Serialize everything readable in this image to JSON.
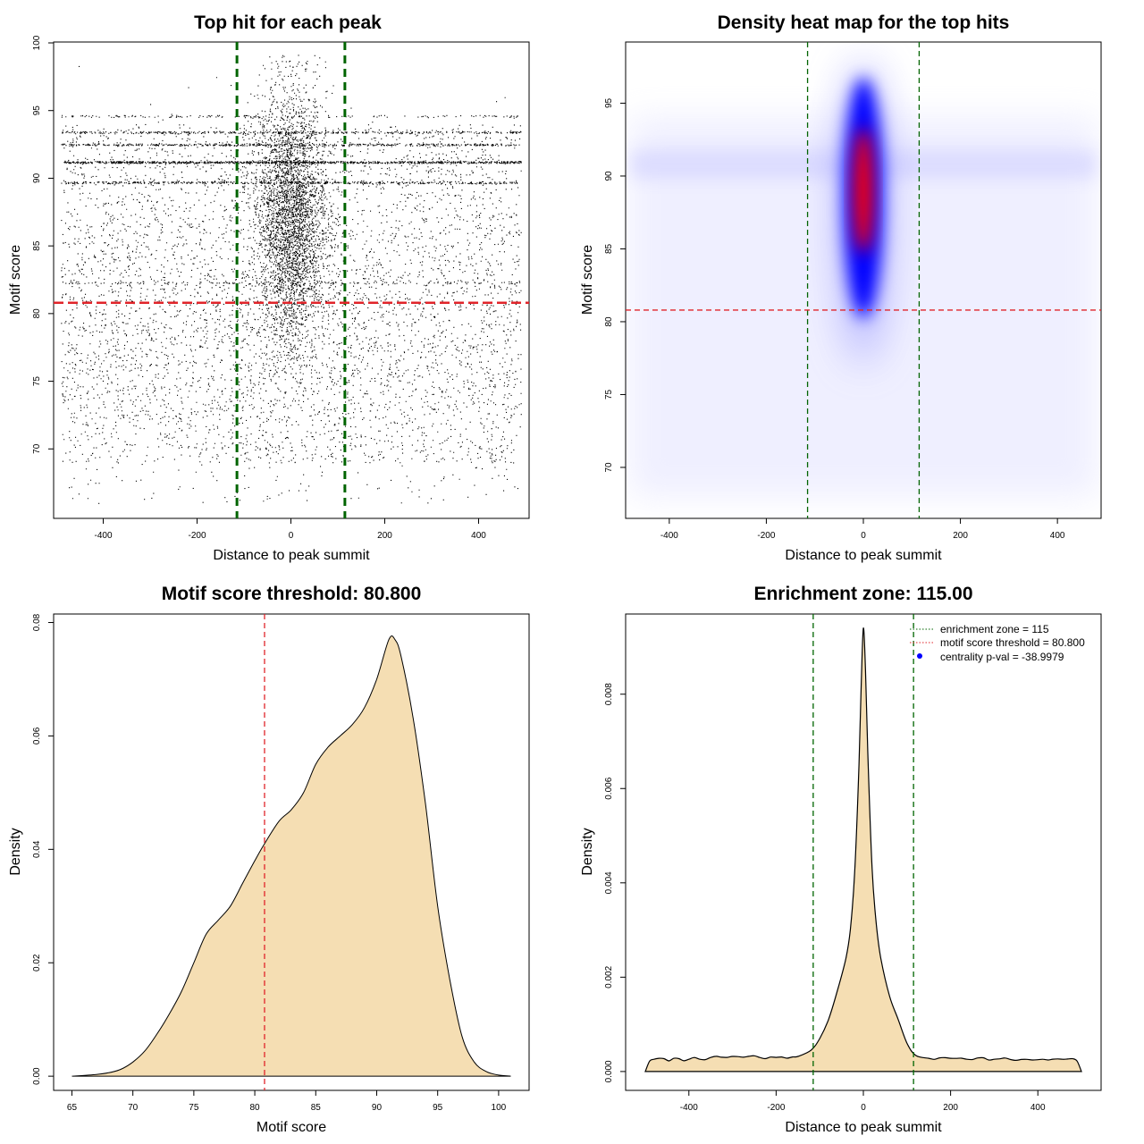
{
  "chart_data": [
    {
      "type": "scatter",
      "title": "Top hit for each peak",
      "xlabel": "Distance to peak summit",
      "ylabel": "Motif score",
      "xlim": [
        -500,
        500
      ],
      "ylim": [
        65,
        100
      ],
      "xticks": [
        -400,
        -200,
        0,
        200,
        400
      ],
      "yticks": [
        70,
        75,
        80,
        85,
        90,
        95,
        100
      ],
      "points_description": "about 40,000 points; dense vertical band centred on 0 (roughly -80 to 80) spanning scores 73-99; uniform background across -490 to 490 with horizontal streaks near 89.7, 91.2, 92.5 and 93.4",
      "vlines": [
        -115,
        115
      ],
      "hline": 80.8,
      "colors": {
        "points": "#000000",
        "vlines": "#006400",
        "hline": "#e0242a"
      }
    },
    {
      "type": "heatmap",
      "title": "Density heat map for the top hits",
      "xlabel": "Distance to peak summit",
      "ylabel": "Motif score",
      "xlim": [
        -490,
        490
      ],
      "ylim": [
        66.5,
        99.2
      ],
      "xticks": [
        -400,
        -200,
        0,
        200,
        400
      ],
      "yticks": [
        70,
        75,
        80,
        85,
        90,
        95
      ],
      "peak": {
        "x": 0,
        "y": 89
      },
      "vlines": [
        -115,
        115
      ],
      "hline": 80.8,
      "colormap": [
        "#ffffff",
        "#0000ff",
        "#ff0000"
      ]
    },
    {
      "type": "area",
      "title": "Motif score threshold: 80.800",
      "xlabel": "Motif score",
      "ylabel": "Density",
      "xlim": [
        63.5,
        102.5
      ],
      "ylim": [
        -0.0025,
        0.0815
      ],
      "xticks": [
        65,
        70,
        75,
        80,
        85,
        90,
        95,
        100
      ],
      "yticks": [
        0.0,
        0.02,
        0.04,
        0.06,
        0.08
      ],
      "ytick_labels": [
        "0.00",
        "0.02",
        "0.04",
        "0.06",
        "0.08"
      ],
      "x": [
        65,
        67,
        68,
        69,
        70,
        71,
        72,
        73,
        74,
        75,
        76,
        77,
        78,
        79,
        80,
        80.8,
        82,
        83,
        84,
        85,
        86,
        87,
        88,
        89,
        90,
        91,
        91.5,
        92,
        93,
        94,
        95,
        96,
        97,
        98,
        99,
        100,
        101
      ],
      "y": [
        0.0,
        0.0003,
        0.0006,
        0.0012,
        0.0025,
        0.0045,
        0.0075,
        0.011,
        0.015,
        0.02,
        0.025,
        0.0275,
        0.03,
        0.034,
        0.038,
        0.041,
        0.045,
        0.047,
        0.05,
        0.055,
        0.058,
        0.06,
        0.062,
        0.065,
        0.07,
        0.077,
        0.077,
        0.074,
        0.063,
        0.048,
        0.03,
        0.017,
        0.007,
        0.0025,
        0.0008,
        0.0002,
        0.0
      ],
      "vline": 80.8,
      "colors": {
        "fill": "#f5deb3",
        "line": "#000000",
        "vline": "#e0242a"
      }
    },
    {
      "type": "area",
      "title": "Enrichment zone: 115.00",
      "xlabel": "Distance to peak summit",
      "ylabel": "Density",
      "xlim": [
        -545,
        545
      ],
      "ylim": [
        -0.0004,
        0.0097
      ],
      "xticks": [
        -400,
        -200,
        0,
        200,
        400
      ],
      "yticks": [
        0.0,
        0.002,
        0.004,
        0.006,
        0.008
      ],
      "ytick_labels": [
        "0.000",
        "0.002",
        "0.004",
        "0.006",
        "0.008"
      ],
      "x": [
        -500,
        -490,
        -480,
        -400,
        -300,
        -200,
        -150,
        -120,
        -100,
        -80,
        -60,
        -40,
        -30,
        -20,
        -10,
        -5,
        0,
        5,
        10,
        20,
        30,
        40,
        60,
        80,
        100,
        120,
        150,
        200,
        300,
        400,
        480,
        490,
        500
      ],
      "y": [
        0.0,
        0.00022,
        0.00026,
        0.00026,
        0.00032,
        0.0003,
        0.00032,
        0.00045,
        0.0007,
        0.0011,
        0.0017,
        0.0024,
        0.003,
        0.0042,
        0.0065,
        0.0082,
        0.0094,
        0.0085,
        0.0068,
        0.0043,
        0.0031,
        0.0024,
        0.0016,
        0.0011,
        0.0006,
        0.00034,
        0.00028,
        0.00028,
        0.00026,
        0.00025,
        0.00027,
        0.00022,
        0.0
      ],
      "vlines": [
        -115,
        115
      ],
      "legend": {
        "position": "top-right",
        "entries": [
          {
            "label": "enrichment zone = 115",
            "style": "dotted-line",
            "color": "#006400"
          },
          {
            "label": "motif score threshold = 80.800",
            "style": "dotted-line",
            "color": "#e0242a"
          },
          {
            "label": "centrality p-val = -38.9979",
            "style": "point",
            "color": "#0000ff"
          }
        ]
      },
      "colors": {
        "fill": "#f5deb3",
        "line": "#000000",
        "vline": "#006400"
      }
    }
  ]
}
